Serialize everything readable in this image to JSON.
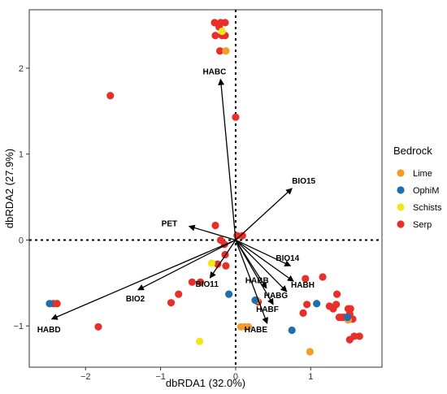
{
  "chart_data": {
    "type": "scatter",
    "xlabel": "dbRDA1 (32.0%)",
    "ylabel": "dbRDA2 (27.9%)",
    "xlim": [
      -2.75,
      1.95
    ],
    "ylim": [
      -1.48,
      2.68
    ],
    "xticks": [
      -2,
      -1,
      0,
      1
    ],
    "yticks": [
      -1,
      0,
      1,
      2
    ],
    "xtick_labels": [
      "−2",
      "−1",
      "0",
      "1"
    ],
    "ytick_labels": [
      "−1",
      "0",
      "1",
      "2"
    ],
    "grid": false,
    "reference_lines": {
      "x": 0,
      "y": 0,
      "style": "dotted"
    },
    "legend": {
      "title": "Bedrock",
      "position": "right",
      "entries": [
        {
          "name": "Lime",
          "color": "#F39C2A"
        },
        {
          "name": "OphiM",
          "color": "#1F6FAE"
        },
        {
          "name": "Schists",
          "color": "#F2E51C"
        },
        {
          "name": "Serp",
          "color": "#E8302B"
        }
      ]
    },
    "vectors": [
      {
        "name": "HABC",
        "x": -0.2,
        "y": 1.87
      },
      {
        "name": "BIO15",
        "x": 0.75,
        "y": 0.6
      },
      {
        "name": "PET",
        "x": -0.62,
        "y": 0.16
      },
      {
        "name": "BIO14",
        "x": 0.73,
        "y": -0.3
      },
      {
        "name": "HABB",
        "x": 0.41,
        "y": -0.56
      },
      {
        "name": "HABH",
        "x": 0.77,
        "y": -0.48
      },
      {
        "name": "HABG",
        "x": 0.68,
        "y": -0.6
      },
      {
        "name": "HABF",
        "x": 0.5,
        "y": -0.75
      },
      {
        "name": "HABE",
        "x": 0.42,
        "y": -0.97
      },
      {
        "name": "BIO11",
        "x": -0.34,
        "y": -0.44
      },
      {
        "name": "BIO2",
        "x": -1.3,
        "y": -0.58
      },
      {
        "name": "HABD",
        "x": -2.45,
        "y": -0.92
      }
    ],
    "series": [
      {
        "name": "Serp",
        "color": "#E8302B",
        "points": [
          [
            -0.28,
            2.53
          ],
          [
            -0.2,
            2.53
          ],
          [
            -0.14,
            2.53
          ],
          [
            -0.27,
            2.38
          ],
          [
            -0.18,
            2.38
          ],
          [
            -0.14,
            2.38
          ],
          [
            -0.22,
            2.48
          ],
          [
            -0.21,
            2.2
          ],
          [
            -1.67,
            1.68
          ],
          [
            0.0,
            1.43
          ],
          [
            -0.27,
            0.17
          ],
          [
            -0.2,
            0.0
          ],
          [
            -0.15,
            -0.05
          ],
          [
            -0.14,
            -0.17
          ],
          [
            -0.24,
            -0.28
          ],
          [
            -0.13,
            -0.3
          ],
          [
            0.02,
            0.05
          ],
          [
            0.09,
            0.05
          ],
          [
            -0.58,
            -0.49
          ],
          [
            -0.47,
            -0.49
          ],
          [
            -0.76,
            -0.63
          ],
          [
            -0.86,
            -0.73
          ],
          [
            -2.43,
            -0.74
          ],
          [
            -2.38,
            -0.74
          ],
          [
            -1.83,
            -1.01
          ],
          [
            0.3,
            -0.72
          ],
          [
            0.93,
            -0.45
          ],
          [
            0.95,
            -0.75
          ],
          [
            0.9,
            -0.85
          ],
          [
            1.16,
            -0.43
          ],
          [
            1.25,
            -0.77
          ],
          [
            1.3,
            -0.8
          ],
          [
            1.34,
            -0.75
          ],
          [
            1.35,
            -0.63
          ],
          [
            1.38,
            -0.9
          ],
          [
            1.42,
            -0.9
          ],
          [
            1.45,
            -0.9
          ],
          [
            1.5,
            -0.8
          ],
          [
            1.53,
            -0.8
          ],
          [
            1.52,
            -0.86
          ],
          [
            1.56,
            -0.92
          ],
          [
            1.52,
            -1.16
          ],
          [
            1.58,
            -1.12
          ],
          [
            1.65,
            -1.12
          ]
        ]
      },
      {
        "name": "Lime",
        "color": "#F39C2A",
        "points": [
          [
            -0.13,
            2.2
          ],
          [
            0.28,
            -0.7
          ],
          [
            0.07,
            -1.01
          ],
          [
            0.12,
            -1.01
          ],
          [
            0.17,
            -1.01
          ],
          [
            0.99,
            -1.3
          ],
          [
            1.5,
            -0.93
          ]
        ]
      },
      {
        "name": "OphiM",
        "color": "#1F6FAE",
        "points": [
          [
            -0.09,
            -0.63
          ],
          [
            0.26,
            -0.7
          ],
          [
            0.75,
            -1.05
          ],
          [
            1.08,
            -0.74
          ],
          [
            -2.48,
            -0.74
          ],
          [
            1.49,
            -0.9
          ]
        ]
      },
      {
        "name": "Schists",
        "color": "#F2E51C",
        "points": [
          [
            -0.18,
            2.43
          ],
          [
            -0.32,
            -0.27
          ],
          [
            -0.48,
            -1.18
          ]
        ]
      }
    ]
  }
}
